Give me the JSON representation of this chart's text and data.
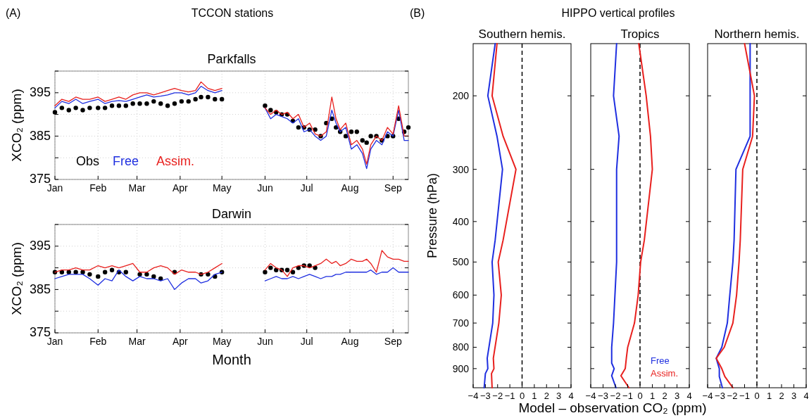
{
  "chart_data": [
    {
      "type": "line",
      "title": "Parkfalls",
      "annotations": [
        "(A)",
        "TCCON stations"
      ],
      "ylabel": "XCO₂ (ppm)",
      "grid": true,
      "legend": "bottom left",
      "x": [
        "--01-01",
        "--01-06",
        "--01-11",
        "--01-16",
        "--01-21",
        "--01-26",
        "--02-01",
        "--02-06",
        "--02-11",
        "--02-16",
        "--02-21",
        "--02-26",
        "--03-03",
        "--03-08",
        "--03-13",
        "--03-18",
        "--03-23",
        "--03-28",
        "--04-02",
        "--04-07",
        "--04-12",
        "--04-16",
        "--04-21",
        "--04-26",
        "--05-01",
        "--05-15",
        "--06-01",
        "--06-05",
        "--06-09",
        "--06-13",
        "--06-17",
        "--06-21",
        "--06-25",
        "--06-29",
        "--07-03",
        "--07-07",
        "--07-11",
        "--07-15",
        "--07-19",
        "--07-22",
        "--07-25",
        "--07-29",
        "--08-02",
        "--08-06",
        "--08-10",
        "--08-13",
        "--08-16",
        "--08-20",
        "--08-24",
        "--08-28",
        "--09-01",
        "--09-05",
        "--09-09",
        "--09-12"
      ],
      "xlim": [
        "--01-01",
        "--09-12"
      ],
      "xticks": [
        {
          "value": "--01-01",
          "label": "Jan"
        },
        {
          "value": "--02-01",
          "label": "Feb"
        },
        {
          "value": "--03-01",
          "label": "Mar"
        },
        {
          "value": "--04-01",
          "label": "Apr"
        },
        {
          "value": "--05-01",
          "label": "May"
        },
        {
          "value": "--06-01",
          "label": "Jun"
        },
        {
          "value": "--07-01",
          "label": "Jul"
        },
        {
          "value": "--08-01",
          "label": "Aug"
        },
        {
          "value": "--09-01",
          "label": "Sep"
        }
      ],
      "ylim": [
        375,
        400
      ],
      "yticks": [
        375,
        {
          "value": 380,
          "label": null
        },
        385,
        {
          "value": 390,
          "label": null
        },
        395,
        {
          "value": 400,
          "label": null
        }
      ],
      "series": [
        {
          "name": "Obs",
          "type": "scatter",
          "marker": "circle",
          "color": "#000000",
          "values": [
            390.5,
            391.5,
            391,
            391.5,
            391,
            391.5,
            391.5,
            391.5,
            392,
            392,
            392,
            392.5,
            392.5,
            392.5,
            393,
            392.5,
            392,
            392.5,
            393,
            393,
            393.5,
            394,
            394,
            393.5,
            393.5,
            null,
            392,
            391,
            390.5,
            390,
            390,
            388.5,
            387,
            387,
            386.5,
            386.5,
            385,
            388,
            389,
            387,
            386,
            385,
            386,
            386,
            384,
            383.5,
            385,
            385,
            384,
            385,
            385,
            389,
            386,
            387
          ]
        },
        {
          "name": "Free",
          "color": "#1f2fe0",
          "values": [
            391.5,
            393,
            392.5,
            393.5,
            392.5,
            393,
            393.5,
            392.5,
            393,
            393.2,
            393,
            393.5,
            394,
            394.5,
            394,
            394.2,
            394.5,
            395,
            395,
            394.5,
            395,
            396.5,
            395.5,
            395,
            395.5,
            null,
            391.5,
            389,
            390,
            389.5,
            389,
            388,
            389,
            386,
            386.5,
            385,
            384,
            385,
            391,
            388,
            386,
            387,
            382,
            383,
            381,
            377.5,
            382,
            384,
            383,
            386,
            385,
            391,
            384,
            384
          ]
        },
        {
          "name": "Assim.",
          "color": "#e8201e",
          "values": [
            392,
            393.5,
            393,
            394,
            393.5,
            393.5,
            394,
            393,
            393.5,
            394,
            393.5,
            394.5,
            395,
            395,
            394.5,
            395,
            395.5,
            396,
            395.5,
            395.2,
            395.5,
            397.5,
            396,
            395.5,
            396,
            null,
            391.5,
            390,
            391,
            390,
            390.5,
            389,
            390,
            387,
            388,
            385.5,
            385,
            386,
            394,
            389,
            386.5,
            388,
            383,
            384,
            382,
            378.5,
            383,
            385,
            384,
            387,
            385.5,
            392,
            385,
            385
          ]
        }
      ]
    },
    {
      "type": "line",
      "title": "Darwin",
      "xlabel": "Month",
      "ylabel": "XCO₂ (ppm)",
      "grid": true,
      "x": [
        "--01-01",
        "--01-06",
        "--01-11",
        "--01-16",
        "--01-21",
        "--01-26",
        "--02-01",
        "--02-06",
        "--02-11",
        "--02-16",
        "--02-21",
        "--02-26",
        "--03-03",
        "--03-08",
        "--03-13",
        "--03-18",
        "--03-23",
        "--03-28",
        "--04-02",
        "--04-07",
        "--04-12",
        "--04-16",
        "--04-21",
        "--04-26",
        "--05-01",
        "--05-15",
        "--06-01",
        "--06-05",
        "--06-09",
        "--06-13",
        "--06-17",
        "--06-21",
        "--06-25",
        "--06-29",
        "--07-03",
        "--07-07",
        "--07-11",
        "--07-15",
        "--07-19",
        "--07-22",
        "--07-25",
        "--07-29",
        "--08-02",
        "--08-06",
        "--08-10",
        "--08-13",
        "--08-16",
        "--08-20",
        "--08-24",
        "--08-28",
        "--09-01",
        "--09-05",
        "--09-09",
        "--09-12"
      ],
      "xlim": [
        "--01-01",
        "--09-12"
      ],
      "xticks": [
        {
          "value": "--01-01",
          "label": "Jan"
        },
        {
          "value": "--02-01",
          "label": "Feb"
        },
        {
          "value": "--03-01",
          "label": "Mar"
        },
        {
          "value": "--04-01",
          "label": "Apr"
        },
        {
          "value": "--05-01",
          "label": "May"
        },
        {
          "value": "--06-01",
          "label": "Jun"
        },
        {
          "value": "--07-01",
          "label": "Jul"
        },
        {
          "value": "--08-01",
          "label": "Aug"
        },
        {
          "value": "--09-01",
          "label": "Sep"
        }
      ],
      "ylim": [
        375,
        400
      ],
      "yticks": [
        375,
        {
          "value": 380,
          "label": null
        },
        385,
        {
          "value": 390,
          "label": null
        },
        395,
        {
          "value": 400,
          "label": null
        }
      ],
      "series": [
        {
          "type": "scatter",
          "marker": "circle",
          "color": "#000000",
          "values": [
            389,
            389,
            389,
            389,
            389,
            388.5,
            388,
            389,
            389.5,
            389,
            389,
            null,
            388.5,
            388.5,
            388,
            387.5,
            null,
            389,
            null,
            null,
            null,
            388.5,
            388.5,
            388,
            389,
            null,
            389,
            390,
            389.5,
            389.5,
            389.5,
            389,
            390,
            390.5,
            390.5,
            390,
            null,
            null,
            null,
            null,
            null,
            null,
            null,
            null,
            null,
            null,
            null,
            null,
            null,
            null,
            null,
            null,
            null,
            null
          ]
        },
        {
          "color": "#1f2fe0",
          "values": [
            387.5,
            388,
            388.5,
            388.5,
            388.5,
            387.5,
            386,
            387.5,
            387,
            389.5,
            388,
            387,
            388,
            387.5,
            387.5,
            387,
            387.5,
            385,
            386.5,
            387.5,
            387.5,
            386.5,
            387,
            388.5,
            389,
            null,
            387,
            387.5,
            388,
            387.5,
            387.5,
            388,
            387.5,
            388,
            388.5,
            388,
            387.5,
            388,
            388,
            388.5,
            388.5,
            389,
            389,
            389,
            389,
            389,
            389.5,
            388.5,
            389,
            389,
            390,
            389,
            389,
            389
          ]
        },
        {
          "color": "#e8201e",
          "values": [
            389,
            389.5,
            389.5,
            390,
            389.5,
            389.5,
            390.5,
            390,
            390.5,
            390,
            390.5,
            391,
            389,
            389,
            390,
            390.5,
            390,
            388.5,
            389.5,
            389,
            389,
            388.5,
            389,
            390,
            391,
            null,
            389.5,
            391,
            390,
            389.5,
            388,
            390,
            390.5,
            390.5,
            390,
            390.5,
            391,
            392,
            391,
            391.5,
            390.5,
            391,
            392,
            391.5,
            391.5,
            392,
            391,
            389,
            394,
            392.5,
            392,
            392,
            391.5,
            391.5
          ]
        }
      ]
    },
    {
      "type": "line",
      "title": "Southern hemis.",
      "annotations": [
        "(B)",
        "HIPPO vertical profiles"
      ],
      "ylabel": "Pressure (hPa)",
      "log": "y",
      "ylim": [
        1000,
        150
      ],
      "yticks": [
        200,
        300,
        400,
        500,
        600,
        700,
        800,
        900
      ],
      "xlim": [
        -4,
        4
      ],
      "xticks": [
        {
          "value": -4,
          "label": "−4"
        },
        {
          "value": -3,
          "label": "−3"
        },
        {
          "value": -2,
          "label": "−2"
        },
        {
          "value": -1,
          "label": "−1"
        },
        0,
        1,
        2,
        3,
        4
      ],
      "ref_lines": [
        {
          "axis": "x",
          "value": 0,
          "color": "#000000",
          "line_style": "dashed"
        }
      ],
      "series": [
        {
          "color": "#1f2fe0",
          "x": [
            -2.2,
            -2.8,
            -2.05,
            -1.6,
            -2.2,
            -2.45,
            -2.3,
            -2.4,
            -2.85,
            -2.8,
            -3.0,
            -3.1
          ],
          "values": [
            150,
            200,
            250,
            300,
            443,
            500,
            600,
            700,
            850,
            900,
            925,
            1000
          ]
        },
        {
          "color": "#e8201e",
          "x": [
            -2.05,
            -2.45,
            -1.55,
            -0.5,
            -1.55,
            -1.95,
            -1.7,
            -1.9,
            -2.35,
            -2.3,
            -2.5,
            -2.45
          ],
          "values": [
            150,
            200,
            250,
            300,
            443,
            500,
            600,
            700,
            850,
            900,
            925,
            1000
          ]
        }
      ]
    },
    {
      "type": "line",
      "title": "Tropics",
      "xlabel": "Model – observation CO₂ (ppm)",
      "tick_labels": "x",
      "legend": "bottom right",
      "log": "y",
      "ylim": [
        1000,
        150
      ],
      "yticks": [
        200,
        300,
        400,
        500,
        600,
        700,
        800,
        900
      ],
      "xlim": [
        -4,
        4
      ],
      "xticks": [
        {
          "value": -4,
          "label": "−4"
        },
        {
          "value": -3,
          "label": "−3"
        },
        {
          "value": -2,
          "label": "−2"
        },
        {
          "value": -1,
          "label": "−1"
        },
        0,
        1,
        2,
        3,
        4
      ],
      "ref_lines": [
        {
          "axis": "x",
          "value": 0,
          "color": "#000000",
          "line_style": "dashed"
        }
      ],
      "series": [
        {
          "name": "Free",
          "color": "#1f2fe0",
          "x": [
            -1.9,
            -2.15,
            -1.7,
            -1.9,
            -1.9,
            -1.9,
            -2.15,
            -2.3,
            -2.3,
            -2.1,
            -2.3,
            -1.95
          ],
          "values": [
            150,
            200,
            250,
            300,
            443,
            500,
            700,
            800,
            873,
            900,
            936,
            1000
          ]
        },
        {
          "name": "Assim.",
          "color": "#e8201e",
          "x": [
            -0.1,
            0.5,
            0.85,
            1.0,
            0.35,
            0.05,
            -0.15,
            -0.45,
            -1.0,
            -1.1,
            -1.2,
            -1.55,
            -0.9
          ],
          "values": [
            150,
            200,
            250,
            300,
            443,
            500,
            600,
            700,
            800,
            844,
            900,
            936,
            1000
          ]
        }
      ]
    },
    {
      "type": "line",
      "title": "Northern hemis.",
      "tick_labels": "x",
      "log": "y",
      "ylim": [
        1000,
        150
      ],
      "yticks": [
        200,
        300,
        400,
        500,
        600,
        700,
        800,
        900
      ],
      "xlim": [
        -4,
        4
      ],
      "xticks": [
        {
          "value": -4,
          "label": "−4"
        },
        {
          "value": -3,
          "label": "−3"
        },
        {
          "value": -2,
          "label": "−2"
        },
        {
          "value": -1,
          "label": "−1"
        },
        0,
        1,
        2,
        3,
        4
      ],
      "ref_lines": [
        {
          "axis": "x",
          "value": 0,
          "color": "#000000",
          "line_style": "dashed"
        }
      ],
      "series": [
        {
          "color": "#1f2fe0",
          "x": [
            -0.55,
            -0.55,
            -0.55,
            -1.7,
            -1.85,
            -1.95,
            -2.2,
            -2.4,
            -2.85,
            -3.3,
            -3.05,
            -3.05,
            -2.8
          ],
          "values": [
            150,
            200,
            250,
            300,
            443,
            500,
            600,
            700,
            800,
            850,
            900,
            940,
            1000
          ]
        },
        {
          "color": "#e8201e",
          "x": [
            -1.0,
            -0.2,
            -0.35,
            -1.15,
            -1.35,
            -1.45,
            -1.65,
            -1.95,
            -2.65,
            -3.3,
            -2.85,
            -2.6,
            -1.95
          ],
          "values": [
            150,
            200,
            250,
            300,
            443,
            500,
            600,
            700,
            800,
            850,
            900,
            940,
            1000
          ]
        }
      ]
    }
  ]
}
